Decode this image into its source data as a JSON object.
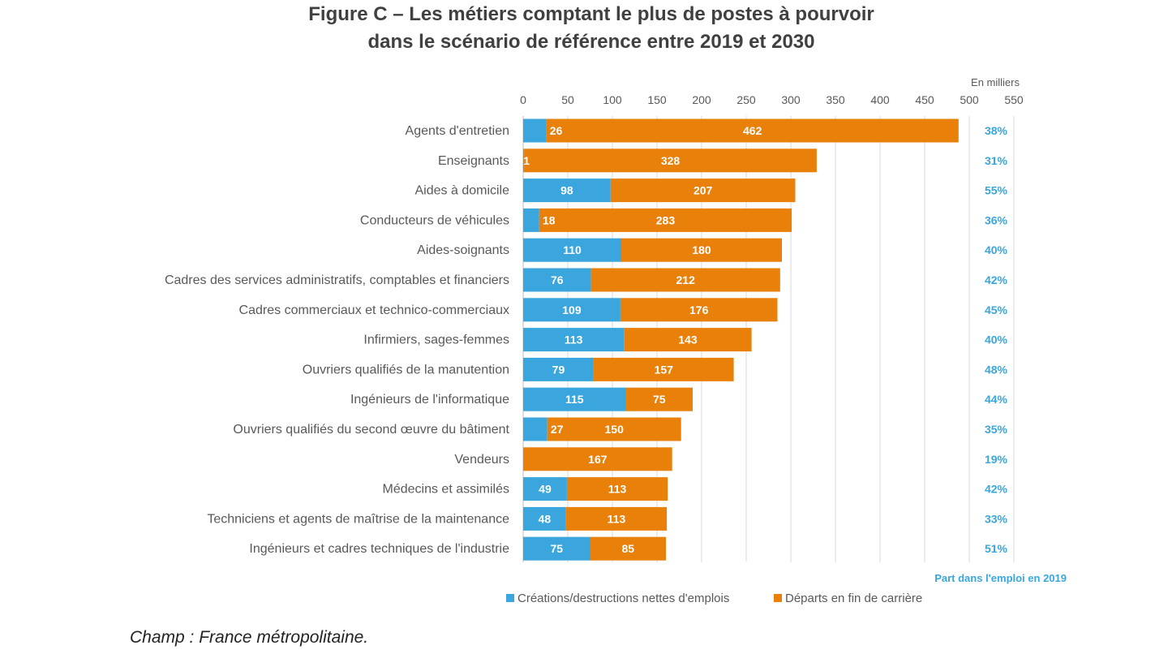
{
  "title_line1": "Figure C – Les métiers comptant le plus de postes à pourvoir",
  "title_line2": "dans le scénario de référence entre 2019 et 2030",
  "note": "Champ : France métropolitaine.",
  "colors": {
    "creations": "#3aa6dd",
    "departs": "#e8800a",
    "share": "#3aa6dd",
    "axis": "#595959",
    "grid": "#d9d9d9"
  },
  "chart_data": {
    "type": "bar",
    "orientation": "horizontal",
    "stacked": true,
    "unit_label": "En milliers",
    "xlim": [
      0,
      550
    ],
    "xticks": [
      0,
      50,
      100,
      150,
      200,
      250,
      300,
      350,
      400,
      450,
      500,
      550
    ],
    "grid": true,
    "legend_position": "bottom",
    "categories": [
      "Agents d'entretien",
      "Enseignants",
      "Aides à domicile",
      "Conducteurs de véhicules",
      "Aides-soignants",
      "Cadres des services administratifs, comptables et financiers",
      "Cadres commerciaux et technico-commerciaux",
      "Infirmiers, sages-femmes",
      "Ouvriers qualifiés de la manutention",
      "Ingénieurs de l'informatique",
      "Ouvriers qualifiés du second œuvre du bâtiment",
      "Vendeurs",
      "Médecins et assimilés",
      "Techniciens et agents de maîtrise de la maintenance",
      "Ingénieurs et cadres techniques de l'industrie"
    ],
    "series": [
      {
        "name": "Créations/destructions nettes d'emplois",
        "values": [
          26,
          1,
          98,
          18,
          110,
          76,
          109,
          113,
          79,
          115,
          27,
          0,
          49,
          48,
          75
        ],
        "labels": [
          "26",
          "1",
          "98",
          "18",
          "110",
          "76",
          "109",
          "113",
          "79",
          "115",
          "27",
          "",
          "49",
          "48",
          "75"
        ]
      },
      {
        "name": "Départs en fin de carrière",
        "values": [
          462,
          328,
          207,
          283,
          180,
          212,
          176,
          143,
          157,
          75,
          150,
          167,
          113,
          113,
          85
        ],
        "labels": [
          "462",
          "328",
          "207",
          "283",
          "180",
          "212",
          "176",
          "143",
          "157",
          "75",
          "150",
          "167",
          "113",
          "113",
          "85"
        ]
      }
    ],
    "share_title": "Part dans l'emploi en 2019",
    "share_values": [
      "38%",
      "31%",
      "55%",
      "36%",
      "40%",
      "42%",
      "45%",
      "40%",
      "48%",
      "44%",
      "35%",
      "19%",
      "42%",
      "33%",
      "51%"
    ]
  }
}
